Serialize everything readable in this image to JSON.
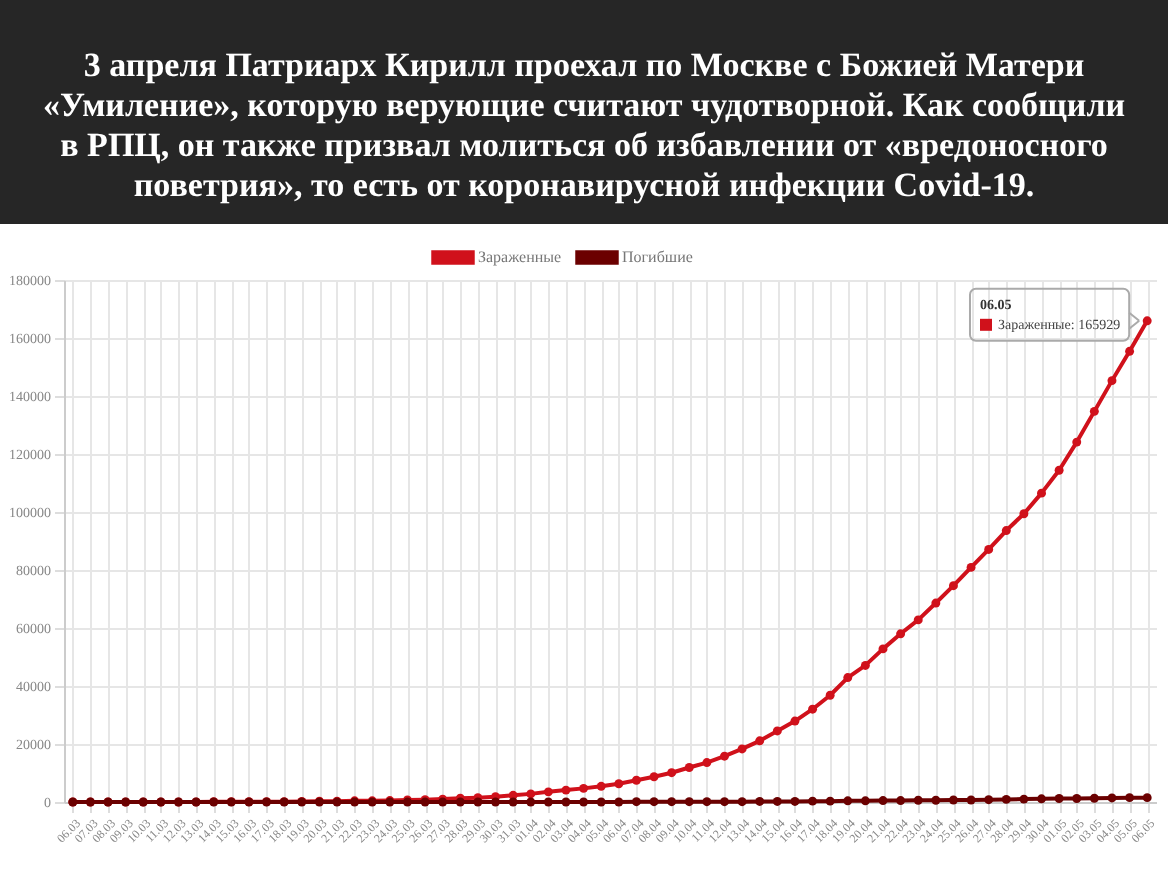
{
  "chart_data": {
    "type": "line",
    "title": "3 апреля Патриарх Кирилл проехал по Москве с Божией Матери «Умиление», которую верующие считают чудотворной. Как сообщили в РПЦ, он также призвал молиться об избавлении от «вредоносного поветрия», то есть от коронавирусной инфекции Covid-19.",
    "categories": [
      "06.03",
      "07.03",
      "08.03",
      "09.03",
      "10.03",
      "11.03",
      "12.03",
      "13.03",
      "14.03",
      "15.03",
      "16.03",
      "17.03",
      "18.03",
      "19.03",
      "20.03",
      "21.03",
      "22.03",
      "23.03",
      "24.03",
      "25.03",
      "26.03",
      "27.03",
      "28.03",
      "29.03",
      "30.03",
      "31.03",
      "01.04",
      "02.04",
      "03.04",
      "04.04",
      "05.04",
      "06.04",
      "07.04",
      "08.04",
      "09.04",
      "10.04",
      "11.04",
      "12.04",
      "13.04",
      "14.04",
      "15.04",
      "16.04",
      "17.04",
      "18.04",
      "19.04",
      "20.04",
      "21.04",
      "22.04",
      "23.04",
      "24.04",
      "25.04",
      "26.04",
      "27.04",
      "28.04",
      "29.04",
      "30.04",
      "01.05",
      "02.05",
      "03.05",
      "04.05",
      "05.05",
      "06.05"
    ],
    "series": [
      {
        "name": "Зараженные",
        "color": "#d0111b",
        "values": [
          0,
          0,
          0,
          0,
          0,
          0,
          0,
          0,
          100,
          100,
          100,
          100,
          100,
          200,
          300,
          300,
          400,
          400,
          500,
          700,
          800,
          1000,
          1300,
          1500,
          1800,
          2300,
          2800,
          3500,
          4100,
          4700,
          5400,
          6300,
          7500,
          8700,
          10100,
          11900,
          13600,
          15800,
          18300,
          21100,
          24500,
          27900,
          32000,
          36800,
          42900,
          47100,
          52800,
          58000,
          62800,
          68600,
          74600,
          80900,
          87100,
          93600,
          99400,
          106500,
          114400,
          124100,
          134700,
          145300,
          155400,
          165929
        ]
      },
      {
        "name": "Погибшие",
        "color": "#6b0000",
        "values": [
          0,
          0,
          0,
          0,
          0,
          0,
          0,
          0,
          0,
          0,
          0,
          0,
          0,
          0,
          0,
          0,
          0,
          0,
          0,
          0,
          0,
          0,
          0,
          0,
          0,
          0,
          0,
          0,
          0,
          0,
          0,
          0,
          100,
          100,
          100,
          100,
          100,
          100,
          100,
          200,
          200,
          200,
          300,
          300,
          400,
          400,
          500,
          500,
          600,
          600,
          700,
          700,
          800,
          900,
          1000,
          1100,
          1200,
          1200,
          1300,
          1400,
          1500,
          1500
        ]
      }
    ],
    "ylim": [
      0,
      180000
    ],
    "yticks": [
      0,
      20000,
      40000,
      60000,
      80000,
      100000,
      120000,
      140000,
      160000,
      180000
    ],
    "grid": true,
    "legend": "top",
    "marker": "circle",
    "line_style": "solid",
    "annotations": [
      "06.05",
      {
        "text": "Зараженные: 165929",
        "x": "06.05",
        "y": 165929
      }
    ]
  }
}
